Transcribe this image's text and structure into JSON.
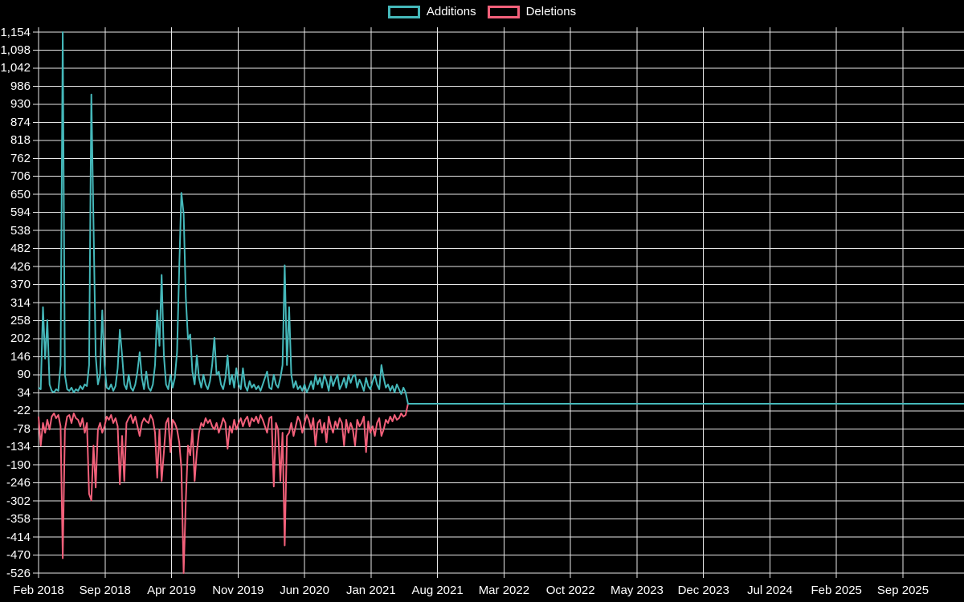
{
  "colors": {
    "background": "#000000",
    "grid": "#e8e8e8",
    "text": "#ffffff",
    "additions": "#45b8ba",
    "deletions": "#f2607a"
  },
  "legend": {
    "items": [
      {
        "label": "Additions",
        "color": "#45b8ba"
      },
      {
        "label": "Deletions",
        "color": "#f2607a"
      }
    ]
  },
  "chart_data": {
    "type": "line",
    "title": "",
    "xlabel": "",
    "ylabel": "",
    "grid": true,
    "legend_position": "top",
    "x_unit": "week",
    "x_start_label": "Feb 2018",
    "x_ticks": [
      "Feb 2018",
      "Sep 2018",
      "Apr 2019",
      "Nov 2019",
      "Jun 2020",
      "Jan 2021",
      "Aug 2021",
      "Mar 2022",
      "Oct 2022",
      "May 2023",
      "Dec 2023",
      "Jul 2024",
      "Feb 2025",
      "Sep 2025"
    ],
    "x_tick_interval_months": 7,
    "ylim": [
      -526,
      1154
    ],
    "y_step": 56,
    "y_tick_labels": [
      "1,154",
      "1,098",
      "1,042",
      "986",
      "930",
      "874",
      "818",
      "762",
      "706",
      "650",
      "594",
      "538",
      "482",
      "426",
      "370",
      "314",
      "258",
      "202",
      "146",
      "90",
      "34",
      "-22",
      "-78",
      "-134",
      "-190",
      "-246",
      "-302",
      "-358",
      "-414",
      "-470",
      "-526"
    ],
    "flat_zero_after_data_end": true,
    "series": [
      {
        "name": "Additions",
        "color": "#45b8ba",
        "values": [
          50,
          45,
          300,
          140,
          260,
          60,
          40,
          35,
          45,
          40,
          120,
          1154,
          90,
          45,
          40,
          50,
          35,
          45,
          40,
          55,
          45,
          60,
          55,
          120,
          960,
          560,
          150,
          60,
          90,
          290,
          120,
          50,
          45,
          60,
          40,
          55,
          110,
          230,
          150,
          60,
          45,
          90,
          50,
          40,
          60,
          100,
          160,
          80,
          45,
          100,
          50,
          40,
          60,
          120,
          290,
          180,
          400,
          150,
          60,
          45,
          90,
          50,
          80,
          160,
          420,
          655,
          590,
          330,
          200,
          215,
          100,
          60,
          150,
          80,
          50,
          90,
          60,
          45,
          70,
          120,
          205,
          90,
          100,
          60,
          45,
          80,
          150,
          60,
          90,
          50,
          110,
          60,
          45,
          110,
          55,
          40,
          70,
          50,
          60,
          45,
          55,
          40,
          60,
          80,
          100,
          50,
          45,
          90,
          60,
          50,
          80,
          120,
          430,
          120,
          300,
          90,
          50,
          70,
          45,
          55,
          40,
          60,
          35,
          50,
          70,
          45,
          90,
          60,
          80,
          50,
          90,
          70,
          40,
          85,
          55,
          75,
          90,
          45,
          60,
          80,
          50,
          90,
          65,
          85,
          90,
          50,
          75,
          60,
          40,
          80,
          55,
          45,
          70,
          90,
          60,
          45,
          120,
          80,
          50,
          60,
          40,
          55,
          35,
          60,
          45,
          30,
          50,
          35
        ]
      },
      {
        "name": "Deletions",
        "color": "#f2607a",
        "values": [
          -40,
          -130,
          -60,
          -90,
          -50,
          -80,
          -40,
          -30,
          -45,
          -35,
          -70,
          -480,
          -80,
          -40,
          -35,
          -60,
          -30,
          -45,
          -50,
          -70,
          -45,
          -90,
          -60,
          -280,
          -300,
          -130,
          -260,
          -80,
          -60,
          -90,
          -70,
          -40,
          -50,
          -35,
          -60,
          -45,
          -70,
          -250,
          -100,
          -240,
          -60,
          -45,
          -35,
          -60,
          -40,
          -70,
          -100,
          -60,
          -45,
          -55,
          -60,
          -35,
          -50,
          -90,
          -230,
          -80,
          -240,
          -150,
          -60,
          -45,
          -150,
          -50,
          -60,
          -80,
          -120,
          -200,
          -526,
          -300,
          -130,
          -160,
          -80,
          -240,
          -150,
          -90,
          -60,
          -70,
          -45,
          -60,
          -50,
          -70,
          -80,
          -60,
          -90,
          -70,
          -45,
          -60,
          -140,
          -70,
          -90,
          -50,
          -80,
          -60,
          -45,
          -70,
          -50,
          -40,
          -70,
          -45,
          -55,
          -40,
          -60,
          -35,
          -50,
          -70,
          -90,
          -45,
          -40,
          -257,
          -60,
          -80,
          -240,
          -90,
          -440,
          -100,
          -90,
          -60,
          -100,
          -70,
          -40,
          -55,
          -90,
          -60,
          -35,
          -50,
          -80,
          -45,
          -130,
          -60,
          -50,
          -90,
          -60,
          -120,
          -40,
          -70,
          -90,
          -55,
          -75,
          -45,
          -60,
          -130,
          -50,
          -90,
          -60,
          -80,
          -130,
          -50,
          -70,
          -60,
          -40,
          -150,
          -55,
          -90,
          -70,
          -100,
          -60,
          -45,
          -100,
          -80,
          -50,
          -60,
          -40,
          -55,
          -35,
          -50,
          -45,
          -30,
          -40,
          -35
        ]
      }
    ]
  }
}
